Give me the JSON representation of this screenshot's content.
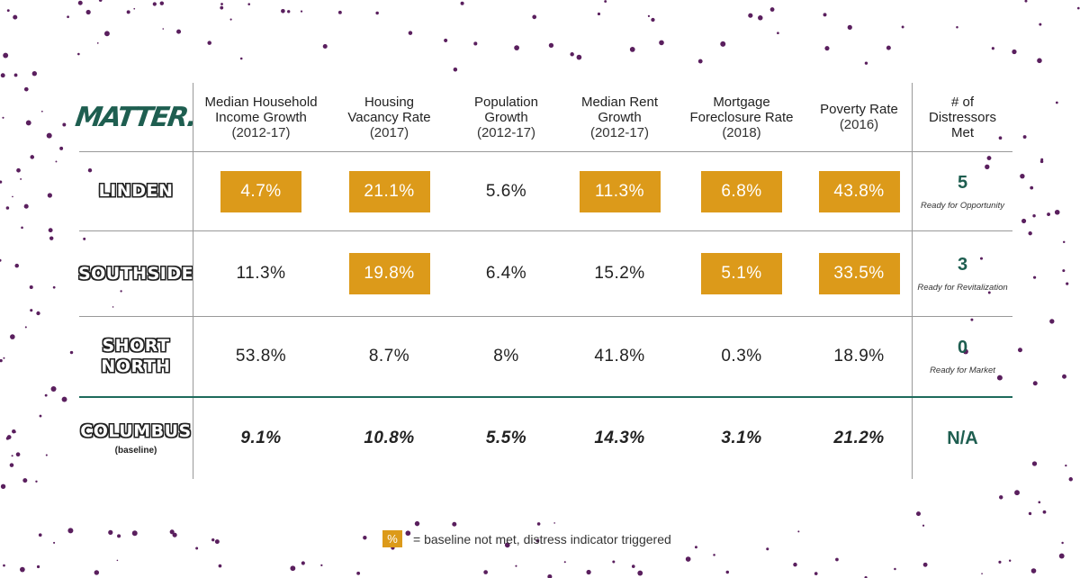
{
  "logo": "MATTER.",
  "colors": {
    "highlight": "#dc9a1a",
    "accent": "#1e5e50",
    "splatter": "#5a1f5e"
  },
  "headers": [
    {
      "title": "Median Household Income Growth",
      "sub": "(2012-17)"
    },
    {
      "title": "Housing Vacancy Rate",
      "sub": "(2017)"
    },
    {
      "title": "Population Growth",
      "sub": "(2012-17)"
    },
    {
      "title": "Median Rent Growth",
      "sub": "(2012-17)"
    },
    {
      "title": "Mortgage Foreclosure Rate",
      "sub": "(2018)"
    },
    {
      "title": "Poverty Rate",
      "sub": "(2016)"
    },
    {
      "title": "# of Distressors Met",
      "sub": ""
    }
  ],
  "rows": [
    {
      "name": "LINDEN",
      "values": [
        "4.7%",
        "21.1%",
        "5.6%",
        "11.3%",
        "6.8%",
        "43.8%"
      ],
      "triggered": [
        true,
        true,
        false,
        true,
        true,
        true
      ],
      "count": "5",
      "status": "Ready for Opportunity"
    },
    {
      "name": "SOUTHSIDE",
      "values": [
        "11.3%",
        "19.8%",
        "6.4%",
        "15.2%",
        "5.1%",
        "33.5%"
      ],
      "triggered": [
        false,
        true,
        false,
        false,
        true,
        true
      ],
      "count": "3",
      "status": "Ready for Revitalization"
    },
    {
      "name": "SHORT NORTH",
      "values": [
        "53.8%",
        "8.7%",
        "8%",
        "41.8%",
        "0.3%",
        "18.9%"
      ],
      "triggered": [
        false,
        false,
        false,
        false,
        false,
        false
      ],
      "count": "0",
      "status": "Ready for Market"
    },
    {
      "name": "COLUMBUS",
      "sub": "(baseline)",
      "values": [
        "9.1%",
        "10.8%",
        "5.5%",
        "14.3%",
        "3.1%",
        "21.2%"
      ],
      "triggered": [
        false,
        false,
        false,
        false,
        false,
        false
      ],
      "count": "N/A",
      "status": ""
    }
  ],
  "legend": {
    "symbol": "%",
    "text": "= baseline not met, distress indicator triggered"
  }
}
